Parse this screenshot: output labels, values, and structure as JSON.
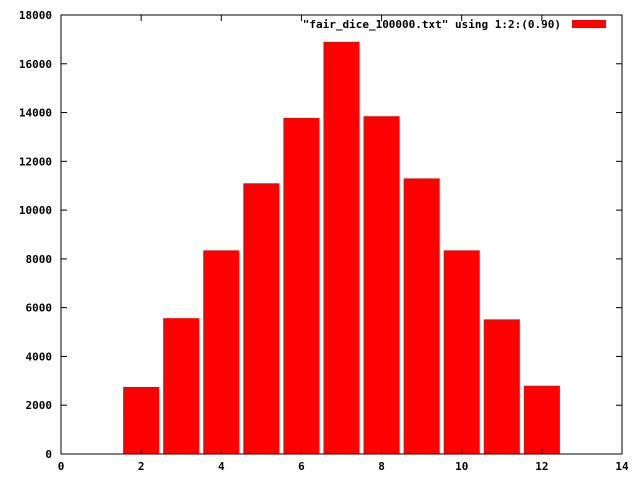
{
  "chart_data": {
    "type": "bar",
    "x": [
      2,
      3,
      4,
      5,
      6,
      7,
      8,
      9,
      10,
      11,
      12
    ],
    "values": [
      2750,
      5570,
      8350,
      11100,
      13780,
      16900,
      13850,
      11300,
      8350,
      5520,
      2800
    ],
    "bar_width": 0.9,
    "xlim": [
      0,
      14
    ],
    "ylim": [
      0,
      18000
    ],
    "xticks": [
      0,
      2,
      4,
      6,
      8,
      10,
      12,
      14
    ],
    "yticks": [
      0,
      2000,
      4000,
      6000,
      8000,
      10000,
      12000,
      14000,
      16000,
      18000
    ],
    "legend": {
      "label": "\"fair_dice_100000.txt\" using 1:2:(0.90)",
      "position": "top-right"
    },
    "grid": false,
    "color": "#ff0000"
  }
}
